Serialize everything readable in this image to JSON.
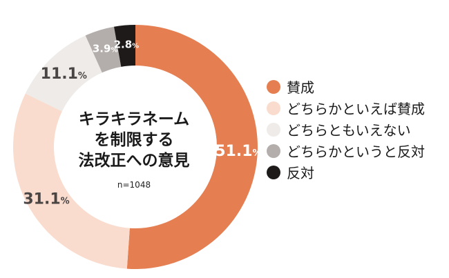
{
  "chart_data": {
    "type": "pie",
    "variant": "donut",
    "title_lines": [
      "キラキラネーム",
      "を制限する",
      "法改正への意見"
    ],
    "note": "n=1048",
    "unit": "%",
    "categories": [
      "賛成",
      "どちらかといえば賛成",
      "どちらともいえない",
      "どちらかというと反対",
      "反対"
    ],
    "values": [
      51.1,
      31.1,
      11.1,
      3.9,
      2.8
    ],
    "value_labels": [
      "51.1",
      "31.1",
      "11.1",
      "3.9",
      "2.8"
    ],
    "colors": [
      "#e57f52",
      "#f9dccd",
      "#eeebe8",
      "#b3aeab",
      "#1e1a1a"
    ],
    "label_colors": [
      "#ffffff",
      "#4a4545",
      "#4a4545",
      "#ffffff",
      "#ffffff"
    ],
    "legend_position": "right",
    "start_angle_deg": 0,
    "direction": "clockwise"
  }
}
